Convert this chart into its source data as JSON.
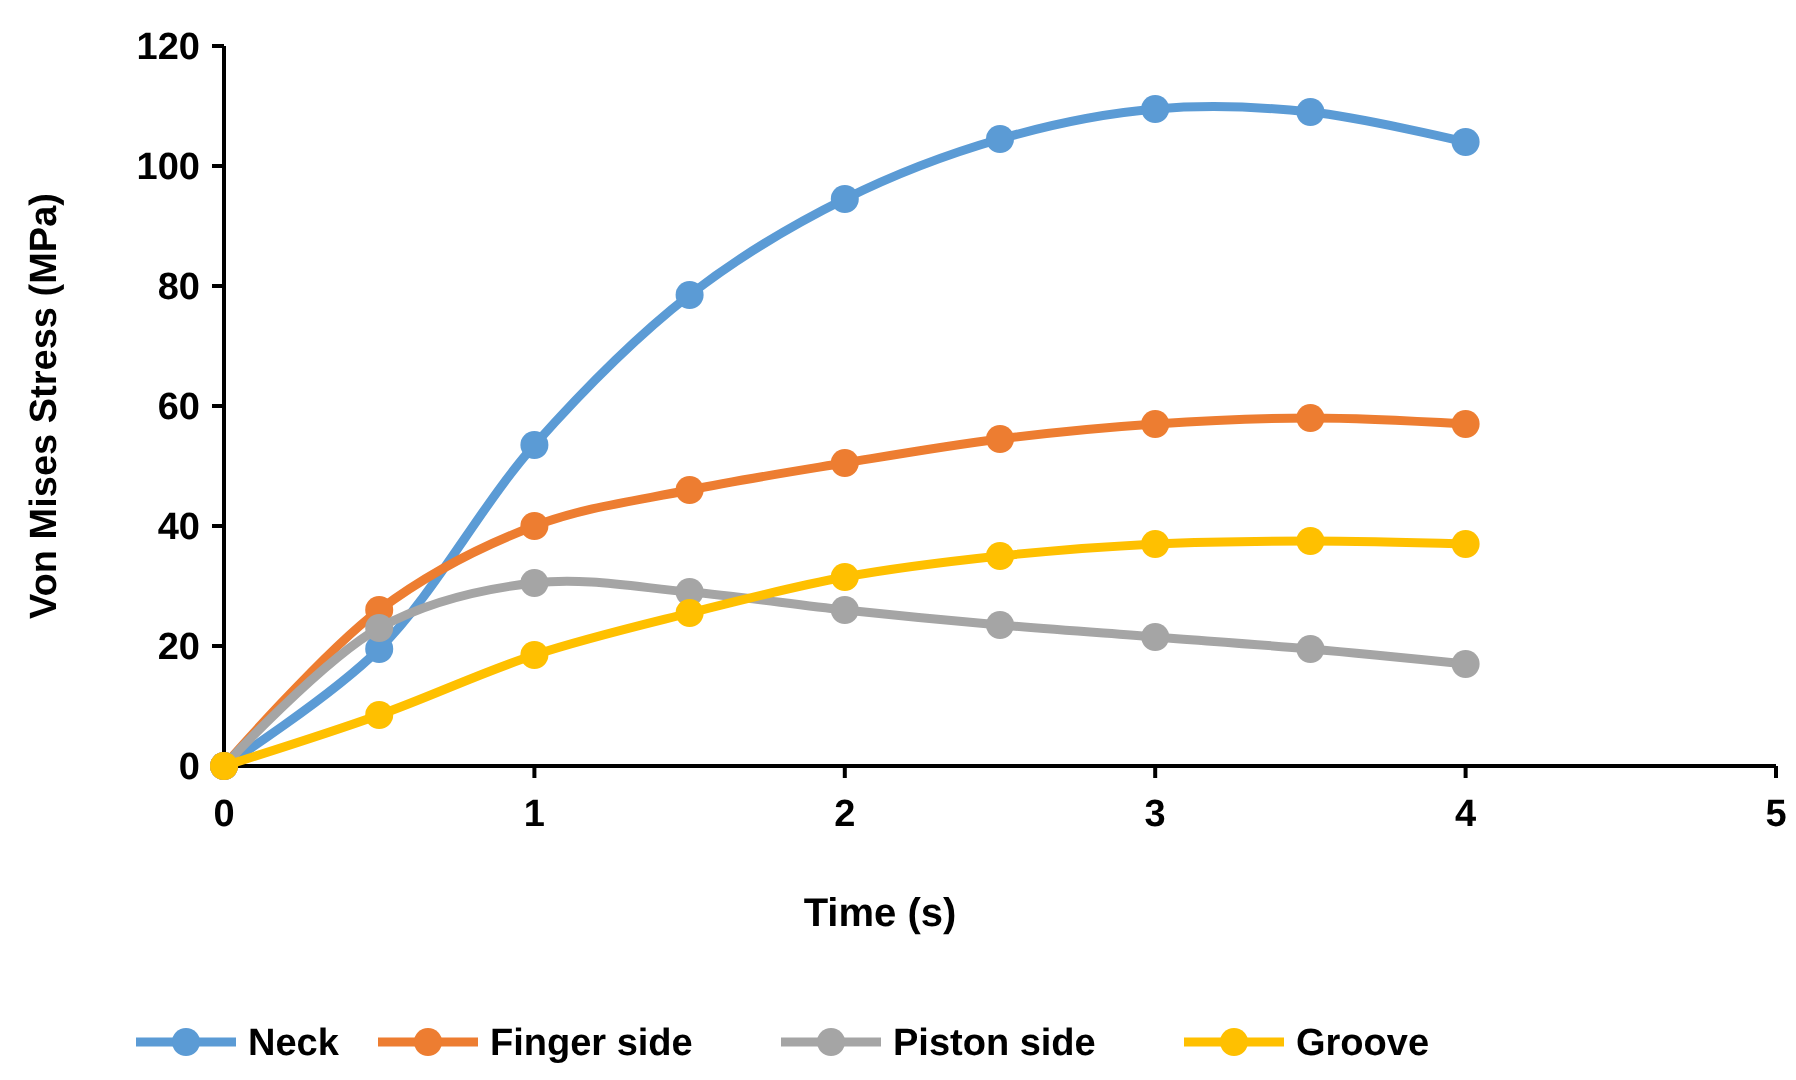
{
  "chart_data": {
    "type": "line",
    "xlabel": "Time (s)",
    "ylabel": "Von Mises Stress (MPa)",
    "x": [
      0,
      0.5,
      1,
      1.5,
      2,
      2.5,
      3,
      3.5,
      4
    ],
    "series": [
      {
        "name": "Neck",
        "color": "#5b9bd5",
        "values": [
          0,
          19.5,
          53.5,
          78.5,
          94.5,
          104.5,
          109.5,
          109,
          104
        ]
      },
      {
        "name": "Finger side",
        "color": "#ed7d31",
        "values": [
          0,
          26,
          40,
          46,
          50.5,
          54.5,
          57,
          58,
          57
        ]
      },
      {
        "name": "Piston side",
        "color": "#a5a5a5",
        "values": [
          0,
          23,
          30.5,
          29,
          26,
          23.5,
          21.5,
          19.5,
          17
        ]
      },
      {
        "name": "Groove",
        "color": "#ffc000",
        "values": [
          0,
          8.5,
          18.5,
          25.5,
          31.5,
          35,
          37,
          37.5,
          37
        ]
      }
    ],
    "xlim": [
      0,
      5
    ],
    "xticks": [
      0,
      1,
      2,
      3,
      4,
      5
    ],
    "ylim": [
      0,
      120
    ],
    "yticks": [
      0,
      20,
      40,
      60,
      80,
      100,
      120
    ],
    "grid": false,
    "legend": "bottom",
    "marker": "circle",
    "line_style": "solid"
  }
}
